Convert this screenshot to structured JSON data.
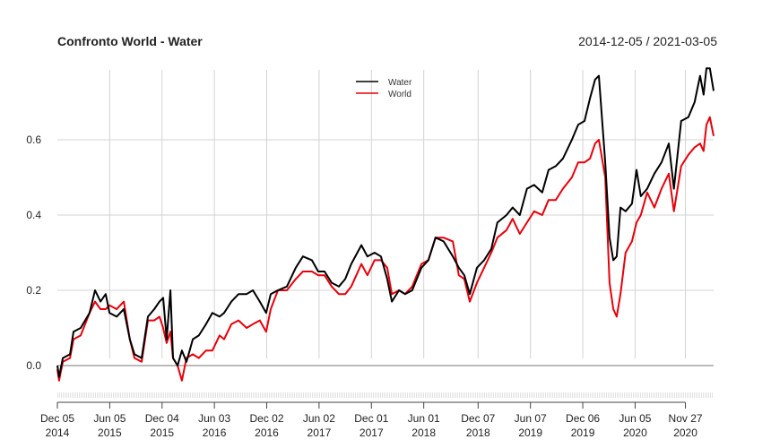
{
  "chart_data": {
    "type": "line",
    "title": "Confronto World - Water",
    "date_range_label": "2014-12-05 / 2021-03-05",
    "xlim": [
      "2014-12-05",
      "2021-03-05"
    ],
    "ylim": [
      -0.09,
      0.8
    ],
    "grid": true,
    "legend_placement": "top-center",
    "y_ticks": [
      "0.0",
      "0.2",
      "0.4",
      "0.6"
    ],
    "y_tick_values": [
      0.0,
      0.2,
      0.4,
      0.6
    ],
    "x_ticks": [
      {
        "date": "2014-12-05",
        "line1": "Dec 05",
        "line2": "2014"
      },
      {
        "date": "2015-06-05",
        "line1": "Jun 05",
        "line2": "2015"
      },
      {
        "date": "2015-12-04",
        "line1": "Dec 04",
        "line2": "2015"
      },
      {
        "date": "2016-06-03",
        "line1": "Jun 03",
        "line2": "2016"
      },
      {
        "date": "2016-12-02",
        "line1": "Dec 02",
        "line2": "2016"
      },
      {
        "date": "2017-06-02",
        "line1": "Jun 02",
        "line2": "2017"
      },
      {
        "date": "2017-12-01",
        "line1": "Dec 01",
        "line2": "2017"
      },
      {
        "date": "2018-06-01",
        "line1": "Jun 01",
        "line2": "2018"
      },
      {
        "date": "2018-12-07",
        "line1": "Dec 07",
        "line2": "2018"
      },
      {
        "date": "2019-06-07",
        "line1": "Jun 07",
        "line2": "2019"
      },
      {
        "date": "2019-12-06",
        "line1": "Dec 06",
        "line2": "2019"
      },
      {
        "date": "2020-06-05",
        "line1": "Jun 05",
        "line2": "2020"
      },
      {
        "date": "2020-11-27",
        "line1": "Nov 27",
        "line2": "2020"
      }
    ],
    "x": [
      "2014-12-05",
      "2014-12-11",
      "2014-12-24",
      "2015-01-18",
      "2015-01-30",
      "2015-02-24",
      "2015-03-27",
      "2015-04-15",
      "2015-05-04",
      "2015-05-22",
      "2015-06-04",
      "2015-06-29",
      "2015-07-24",
      "2015-08-14",
      "2015-08-30",
      "2015-09-24",
      "2015-10-16",
      "2015-11-07",
      "2015-11-25",
      "2015-12-08",
      "2015-12-20",
      "2016-01-02",
      "2016-01-11",
      "2016-01-27",
      "2016-02-11",
      "2016-02-27",
      "2016-03-20",
      "2016-04-10",
      "2016-05-05",
      "2016-05-27",
      "2016-06-21",
      "2016-07-07",
      "2016-08-01",
      "2016-08-26",
      "2016-09-23",
      "2016-10-15",
      "2016-11-08",
      "2016-11-30",
      "2016-12-16",
      "2017-01-10",
      "2017-02-10",
      "2017-03-13",
      "2017-04-07",
      "2017-05-08",
      "2017-05-30",
      "2017-06-21",
      "2017-07-16",
      "2017-08-10",
      "2017-09-01",
      "2017-09-22",
      "2017-10-27",
      "2017-11-17",
      "2017-12-12",
      "2018-01-03",
      "2018-01-25",
      "2018-02-10",
      "2018-03-07",
      "2018-03-28",
      "2018-04-22",
      "2018-05-24",
      "2018-06-17",
      "2018-07-12",
      "2018-08-09",
      "2018-09-10",
      "2018-10-01",
      "2018-10-20",
      "2018-11-08",
      "2018-12-03",
      "2018-12-28",
      "2019-01-22",
      "2019-02-12",
      "2019-03-16",
      "2019-04-06",
      "2019-05-01",
      "2019-05-26",
      "2019-06-20",
      "2019-07-18",
      "2019-08-09",
      "2019-09-03",
      "2019-09-28",
      "2019-10-29",
      "2019-11-20",
      "2019-12-12",
      "2019-12-31",
      "2020-01-18",
      "2020-01-31",
      "2020-02-22",
      "2020-03-08",
      "2020-03-21",
      "2020-04-02",
      "2020-04-15",
      "2020-05-03",
      "2020-05-25",
      "2020-06-10",
      "2020-06-25",
      "2020-07-17",
      "2020-08-11",
      "2020-09-05",
      "2020-09-30",
      "2020-10-18",
      "2020-11-12",
      "2020-12-07",
      "2020-12-29",
      "2021-01-17",
      "2021-01-29",
      "2021-02-08",
      "2021-02-20",
      "2021-03-05"
    ],
    "series": [
      {
        "name": "Water",
        "color": "#000000",
        "values": [
          0.0,
          -0.03,
          0.02,
          0.03,
          0.09,
          0.1,
          0.14,
          0.2,
          0.17,
          0.19,
          0.14,
          0.13,
          0.15,
          0.07,
          0.03,
          0.02,
          0.13,
          0.15,
          0.17,
          0.18,
          0.07,
          0.2,
          0.02,
          0.0,
          0.04,
          0.01,
          0.07,
          0.08,
          0.11,
          0.14,
          0.13,
          0.14,
          0.17,
          0.19,
          0.19,
          0.2,
          0.17,
          0.14,
          0.19,
          0.2,
          0.21,
          0.26,
          0.29,
          0.28,
          0.25,
          0.25,
          0.22,
          0.21,
          0.23,
          0.27,
          0.32,
          0.29,
          0.3,
          0.29,
          0.23,
          0.17,
          0.2,
          0.19,
          0.2,
          0.26,
          0.28,
          0.34,
          0.33,
          0.29,
          0.26,
          0.24,
          0.19,
          0.26,
          0.28,
          0.31,
          0.38,
          0.4,
          0.42,
          0.4,
          0.47,
          0.48,
          0.46,
          0.52,
          0.53,
          0.55,
          0.6,
          0.64,
          0.65,
          0.71,
          0.76,
          0.77,
          0.54,
          0.34,
          0.28,
          0.29,
          0.42,
          0.41,
          0.43,
          0.52,
          0.45,
          0.47,
          0.51,
          0.54,
          0.59,
          0.47,
          0.65,
          0.66,
          0.7,
          0.77,
          0.72,
          0.79,
          0.79,
          0.73
        ]
      },
      {
        "name": "World",
        "color": "#e8000b",
        "values": [
          -0.01,
          -0.04,
          0.01,
          0.02,
          0.07,
          0.08,
          0.14,
          0.17,
          0.15,
          0.15,
          0.16,
          0.15,
          0.17,
          0.07,
          0.02,
          0.01,
          0.12,
          0.12,
          0.13,
          0.1,
          0.06,
          0.09,
          0.02,
          0.0,
          -0.04,
          0.02,
          0.03,
          0.02,
          0.04,
          0.04,
          0.08,
          0.07,
          0.11,
          0.12,
          0.1,
          0.11,
          0.12,
          0.09,
          0.15,
          0.2,
          0.2,
          0.23,
          0.25,
          0.25,
          0.24,
          0.24,
          0.21,
          0.19,
          0.19,
          0.21,
          0.27,
          0.24,
          0.28,
          0.28,
          0.26,
          0.19,
          0.2,
          0.19,
          0.21,
          0.27,
          0.28,
          0.34,
          0.34,
          0.33,
          0.24,
          0.23,
          0.17,
          0.22,
          0.26,
          0.3,
          0.34,
          0.36,
          0.39,
          0.35,
          0.38,
          0.41,
          0.4,
          0.44,
          0.44,
          0.47,
          0.5,
          0.54,
          0.54,
          0.55,
          0.59,
          0.6,
          0.5,
          0.22,
          0.15,
          0.13,
          0.19,
          0.3,
          0.33,
          0.38,
          0.4,
          0.46,
          0.42,
          0.47,
          0.51,
          0.41,
          0.53,
          0.56,
          0.58,
          0.59,
          0.57,
          0.64,
          0.66,
          0.61
        ]
      }
    ]
  }
}
